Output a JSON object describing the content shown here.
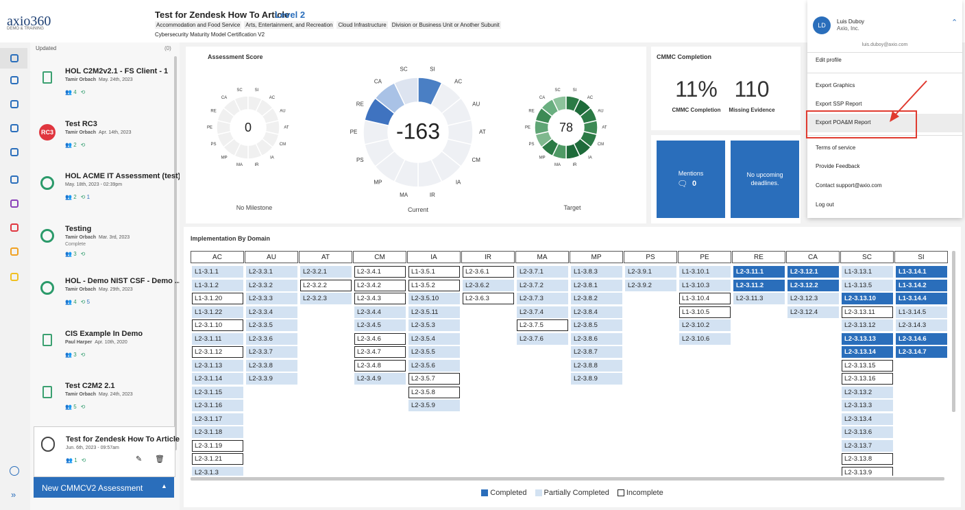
{
  "header": {
    "logo": "axio360",
    "logo_sub": "DEMO & TRAINING",
    "title": "Test for Zendesk How To Article",
    "level": "Level 2",
    "tags": [
      "Accommodation and Food Service",
      "Arts, Entertainment, and Recreation",
      "Cloud Infrastructure",
      "Division or Business Unit or Another Subunit"
    ],
    "framework": "Cybersecurity Maturity Model Certification V2"
  },
  "user": {
    "initials": "LD",
    "name": "Luis Duboy",
    "org": "Axio, Inc.",
    "email": "luis.duboy@axio.com",
    "menu": [
      "Edit profile",
      "Export Graphics",
      "Export SSP Report",
      "Export POA&M Report",
      "Terms of service",
      "Provide Feedback",
      "Contact support@axio.com",
      "Log out"
    ]
  },
  "sidebar": {
    "sort": "Updated",
    "filter": "(0)",
    "new_button": "New CMMCV2 Assessment",
    "items": [
      {
        "title": "HOL C2M2v2.1 - FS Client - 1",
        "author": "Tamir Orbach",
        "date": "May. 24th, 2023",
        "users": 4,
        "history": null
      },
      {
        "title": "Test RC3",
        "badge": "RC3",
        "author": "Tamir Orbach",
        "date": "Apr. 14th, 2023",
        "users": 2,
        "history": null
      },
      {
        "title": "HOL ACME IT Assessment (test)",
        "date": "May. 18th, 2023 - 02:39pm",
        "users": 2,
        "history": 1
      },
      {
        "title": "Testing",
        "author": "Tamir Orbach",
        "date": "Mar. 3rd, 2023",
        "status": "Complete",
        "users": 3,
        "history": null
      },
      {
        "title": "HOL - Demo NIST CSF - Demo ...",
        "author": "Tamir Orbach",
        "date": "May. 29th, 2023",
        "users": 4,
        "history": 5
      },
      {
        "title": "CIS Example In Demo",
        "author": "Paul Harper",
        "date": "Apr. 10th, 2020",
        "users": 3,
        "history": null
      },
      {
        "title": "Test C2M2 2.1",
        "author": "Tamir Orbach",
        "date": "May. 24th, 2023",
        "users": 5,
        "history": null
      },
      {
        "title": "Test for Zendesk How To Article",
        "date": "Jun. 6th, 2023 - 09:57am",
        "users": 1,
        "history": null
      }
    ]
  },
  "score": {
    "title": "Assessment Score",
    "donuts": [
      {
        "value": 0,
        "caption": "No Milestone",
        "colors": [
          "#f0f0f0",
          "#f0f0f0",
          "#f0f0f0",
          "#f0f0f0",
          "#f0f0f0",
          "#f0f0f0",
          "#f0f0f0",
          "#f0f0f0",
          "#f0f0f0",
          "#f0f0f0",
          "#f0f0f0",
          "#f0f0f0",
          "#f0f0f0",
          "#f0f0f0"
        ]
      },
      {
        "value": -163,
        "caption": "Current",
        "colors": [
          "#eef0f4",
          "#eef0f4",
          "#eef0f4",
          "#eef0f4",
          "#eef0f4",
          "#eef0f4",
          "#eef0f4",
          "#eef0f4",
          "#eef0f4",
          "#eef0f4",
          "#3f73c0",
          "#a9c2e6",
          "#dde4f0",
          "#4a7fc4"
        ]
      },
      {
        "value": 78,
        "caption": "Target",
        "colors": [
          "#1e6b3a",
          "#2b7a45",
          "#3d8a55",
          "#2b7a45",
          "#1e6b3a",
          "#1e6b3a",
          "#4f9a65",
          "#2b7a45",
          "#7fb88e",
          "#5fa575",
          "#3d8a55",
          "#6aaf80",
          "#8dc39c",
          "#2b7a45"
        ]
      }
    ]
  },
  "completion": {
    "title": "CMMC Completion",
    "stats": [
      {
        "value": "11%",
        "label": "CMMC Completion"
      },
      {
        "value": "110",
        "label": "Missing Evidence"
      }
    ]
  },
  "mentions": {
    "label": "Mentions",
    "count": 0
  },
  "deadlines": "No upcoming deadlines.",
  "implementation": {
    "title": "Implementation By Domain",
    "legend": [
      {
        "label": "Completed",
        "fill": "#2a6ebb",
        "border": "#2a6ebb",
        "text": "#ffffff"
      },
      {
        "label": "Partially Completed",
        "fill": "#d3e2f2",
        "border": "#d3e2f2",
        "text": "#222222"
      },
      {
        "label": "Incomplete",
        "fill": "#ffffff",
        "border": "#222222",
        "text": "#222222"
      }
    ],
    "columns": [
      {
        "header": "AC",
        "cells": [
          {
            "id": "L1-3.1.1",
            "status": "Partially Completed"
          },
          {
            "id": "L1-3.1.2",
            "status": "Partially Completed"
          },
          {
            "id": "L1-3.1.20",
            "status": "Incomplete"
          },
          {
            "id": "L1-3.1.22",
            "status": "Partially Completed"
          },
          {
            "id": "L2-3.1.10",
            "status": "Incomplete"
          },
          {
            "id": "L2-3.1.11",
            "status": "Partially Completed"
          },
          {
            "id": "L2-3.1.12",
            "status": "Incomplete"
          },
          {
            "id": "L2-3.1.13",
            "status": "Partially Completed"
          },
          {
            "id": "L2-3.1.14",
            "status": "Partially Completed"
          },
          {
            "id": "L2-3.1.15",
            "status": "Partially Completed"
          },
          {
            "id": "L2-3.1.16",
            "status": "Partially Completed"
          },
          {
            "id": "L2-3.1.17",
            "status": "Partially Completed"
          },
          {
            "id": "L2-3.1.18",
            "status": "Partially Completed"
          },
          {
            "id": "L2-3.1.19",
            "status": "Incomplete"
          },
          {
            "id": "L2-3.1.21",
            "status": "Incomplete"
          },
          {
            "id": "L2-3.1.3",
            "status": "Partially Completed"
          }
        ]
      },
      {
        "header": "AU",
        "cells": [
          {
            "id": "L2-3.3.1",
            "status": "Partially Completed"
          },
          {
            "id": "L2-3.3.2",
            "status": "Partially Completed"
          },
          {
            "id": "L2-3.3.3",
            "status": "Partially Completed"
          },
          {
            "id": "L2-3.3.4",
            "status": "Partially Completed"
          },
          {
            "id": "L2-3.3.5",
            "status": "Partially Completed"
          },
          {
            "id": "L2-3.3.6",
            "status": "Partially Completed"
          },
          {
            "id": "L2-3.3.7",
            "status": "Partially Completed"
          },
          {
            "id": "L2-3.3.8",
            "status": "Partially Completed"
          },
          {
            "id": "L2-3.3.9",
            "status": "Partially Completed"
          }
        ]
      },
      {
        "header": "AT",
        "cells": [
          {
            "id": "L2-3.2.1",
            "status": "Partially Completed"
          },
          {
            "id": "L2-3.2.2",
            "status": "Incomplete"
          },
          {
            "id": "L2-3.2.3",
            "status": "Partially Completed"
          }
        ]
      },
      {
        "header": "CM",
        "cells": [
          {
            "id": "L2-3.4.1",
            "status": "Incomplete"
          },
          {
            "id": "L2-3.4.2",
            "status": "Incomplete"
          },
          {
            "id": "L2-3.4.3",
            "status": "Incomplete"
          },
          {
            "id": "L2-3.4.4",
            "status": "Partially Completed"
          },
          {
            "id": "L2-3.4.5",
            "status": "Partially Completed"
          },
          {
            "id": "L2-3.4.6",
            "status": "Incomplete"
          },
          {
            "id": "L2-3.4.7",
            "status": "Incomplete"
          },
          {
            "id": "L2-3.4.8",
            "status": "Incomplete"
          },
          {
            "id": "L2-3.4.9",
            "status": "Partially Completed"
          }
        ]
      },
      {
        "header": "IA",
        "cells": [
          {
            "id": "L1-3.5.1",
            "status": "Incomplete"
          },
          {
            "id": "L1-3.5.2",
            "status": "Incomplete"
          },
          {
            "id": "L2-3.5.10",
            "status": "Partially Completed"
          },
          {
            "id": "L2-3.5.11",
            "status": "Partially Completed"
          },
          {
            "id": "L2-3.5.3",
            "status": "Partially Completed"
          },
          {
            "id": "L2-3.5.4",
            "status": "Partially Completed"
          },
          {
            "id": "L2-3.5.5",
            "status": "Partially Completed"
          },
          {
            "id": "L2-3.5.6",
            "status": "Partially Completed"
          },
          {
            "id": "L2-3.5.7",
            "status": "Incomplete"
          },
          {
            "id": "L2-3.5.8",
            "status": "Incomplete"
          },
          {
            "id": "L2-3.5.9",
            "status": "Partially Completed"
          }
        ]
      },
      {
        "header": "IR",
        "cells": [
          {
            "id": "L2-3.6.1",
            "status": "Incomplete"
          },
          {
            "id": "L2-3.6.2",
            "status": "Partially Completed"
          },
          {
            "id": "L2-3.6.3",
            "status": "Incomplete"
          }
        ]
      },
      {
        "header": "MA",
        "cells": [
          {
            "id": "L2-3.7.1",
            "status": "Partially Completed"
          },
          {
            "id": "L2-3.7.2",
            "status": "Partially Completed"
          },
          {
            "id": "L2-3.7.3",
            "status": "Partially Completed"
          },
          {
            "id": "L2-3.7.4",
            "status": "Partially Completed"
          },
          {
            "id": "L2-3.7.5",
            "status": "Incomplete"
          },
          {
            "id": "L2-3.7.6",
            "status": "Partially Completed"
          }
        ]
      },
      {
        "header": "MP",
        "cells": [
          {
            "id": "L1-3.8.3",
            "status": "Partially Completed"
          },
          {
            "id": "L2-3.8.1",
            "status": "Partially Completed"
          },
          {
            "id": "L2-3.8.2",
            "status": "Partially Completed"
          },
          {
            "id": "L2-3.8.4",
            "status": "Partially Completed"
          },
          {
            "id": "L2-3.8.5",
            "status": "Partially Completed"
          },
          {
            "id": "L2-3.8.6",
            "status": "Partially Completed"
          },
          {
            "id": "L2-3.8.7",
            "status": "Partially Completed"
          },
          {
            "id": "L2-3.8.8",
            "status": "Partially Completed"
          },
          {
            "id": "L2-3.8.9",
            "status": "Partially Completed"
          }
        ]
      },
      {
        "header": "PS",
        "cells": [
          {
            "id": "L2-3.9.1",
            "status": "Partially Completed"
          },
          {
            "id": "L2-3.9.2",
            "status": "Partially Completed"
          }
        ]
      },
      {
        "header": "PE",
        "cells": [
          {
            "id": "L1-3.10.1",
            "status": "Partially Completed"
          },
          {
            "id": "L1-3.10.3",
            "status": "Partially Completed"
          },
          {
            "id": "L1-3.10.4",
            "status": "Incomplete"
          },
          {
            "id": "L1-3.10.5",
            "status": "Incomplete"
          },
          {
            "id": "L2-3.10.2",
            "status": "Partially Completed"
          },
          {
            "id": "L2-3.10.6",
            "status": "Partially Completed"
          }
        ]
      },
      {
        "header": "RE",
        "cells": [
          {
            "id": "L2-3.11.1",
            "status": "Completed"
          },
          {
            "id": "L2-3.11.2",
            "status": "Completed"
          },
          {
            "id": "L2-3.11.3",
            "status": "Partially Completed"
          }
        ]
      },
      {
        "header": "CA",
        "cells": [
          {
            "id": "L2-3.12.1",
            "status": "Completed"
          },
          {
            "id": "L2-3.12.2",
            "status": "Completed"
          },
          {
            "id": "L2-3.12.3",
            "status": "Partially Completed"
          },
          {
            "id": "L2-3.12.4",
            "status": "Partially Completed"
          }
        ]
      },
      {
        "header": "SC",
        "cells": [
          {
            "id": "L1-3.13.1",
            "status": "Partially Completed"
          },
          {
            "id": "L1-3.13.5",
            "status": "Partially Completed"
          },
          {
            "id": "L2-3.13.10",
            "status": "Completed"
          },
          {
            "id": "L2-3.13.11",
            "status": "Incomplete"
          },
          {
            "id": "L2-3.13.12",
            "status": "Partially Completed"
          },
          {
            "id": "L2-3.13.13",
            "status": "Completed"
          },
          {
            "id": "L2-3.13.14",
            "status": "Completed"
          },
          {
            "id": "L2-3.13.15",
            "status": "Incomplete"
          },
          {
            "id": "L2-3.13.16",
            "status": "Incomplete"
          },
          {
            "id": "L2-3.13.2",
            "status": "Partially Completed"
          },
          {
            "id": "L2-3.13.3",
            "status": "Partially Completed"
          },
          {
            "id": "L2-3.13.4",
            "status": "Partially Completed"
          },
          {
            "id": "L2-3.13.6",
            "status": "Partially Completed"
          },
          {
            "id": "L2-3.13.7",
            "status": "Partially Completed"
          },
          {
            "id": "L2-3.13.8",
            "status": "Incomplete"
          },
          {
            "id": "L2-3.13.9",
            "status": "Incomplete"
          }
        ]
      },
      {
        "header": "SI",
        "cells": [
          {
            "id": "L1-3.14.1",
            "status": "Completed"
          },
          {
            "id": "L1-3.14.2",
            "status": "Completed"
          },
          {
            "id": "L1-3.14.4",
            "status": "Completed"
          },
          {
            "id": "L1-3.14.5",
            "status": "Partially Completed"
          },
          {
            "id": "L2-3.14.3",
            "status": "Partially Completed"
          },
          {
            "id": "L2-3.14.6",
            "status": "Completed"
          },
          {
            "id": "L2-3.14.7",
            "status": "Completed"
          }
        ]
      }
    ]
  }
}
